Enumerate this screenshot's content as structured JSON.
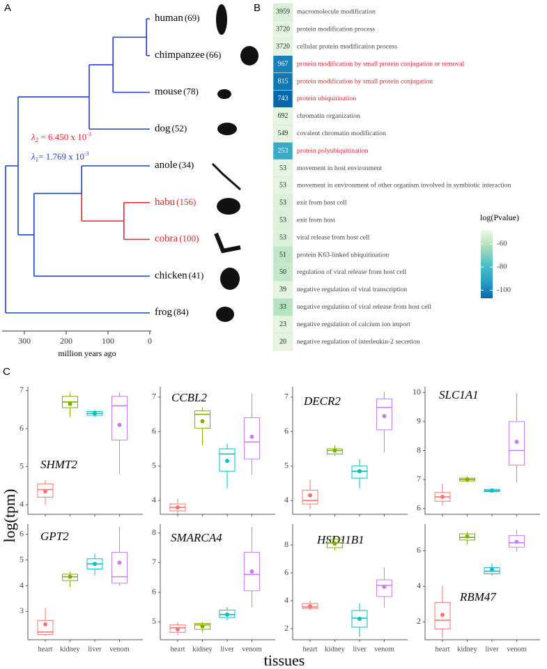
{
  "panel_labels": [
    "A",
    "B",
    "C"
  ],
  "tree": {
    "xlim": [
      345,
      0
    ],
    "xticks": [
      300,
      200,
      100,
      0
    ],
    "xlabel": "million years ago",
    "branch_color": "#1f3fcf",
    "annotations": [
      {
        "symbol": "λ",
        "subscript": "2",
        "text": " = 6.450 x 10",
        "superscript": "-3",
        "color": "#e8212a"
      },
      {
        "symbol": "λ",
        "subscript": "1",
        "text": "= 1.769 x 10",
        "superscript": "-3",
        "color": "#1f3fcf"
      }
    ],
    "root": {
      "age": 345,
      "children": [
        {
          "age": 315,
          "children": [
            {
              "age": 145,
              "children": [
                {
                  "age": 88,
                  "children": [
                    {
                      "age": 8,
                      "children": [
                        {
                          "name": "human",
                          "count": "(69)"
                        },
                        {
                          "name": "chimpanzee",
                          "count": "(66)"
                        }
                      ]
                    },
                    {
                      "name": "mouse",
                      "count": "(78)"
                    }
                  ]
                },
                {
                  "name": "dog",
                  "count": "(52)"
                }
              ]
            },
            {
              "age": 277,
              "children": [
                {
                  "age": 163,
                  "children": [
                    {
                      "name": "anole",
                      "count": "(34)"
                    },
                    {
                      "age": 62,
                      "color": "#e8212a",
                      "children": [
                        {
                          "name": "habu",
                          "count": "(156)",
                          "color": "#e8212a"
                        },
                        {
                          "name": "cobra",
                          "count": "(100)",
                          "color": "#e8212a"
                        }
                      ]
                    }
                  ]
                },
                {
                  "name": "chicken",
                  "count": "(41)"
                }
              ]
            }
          ]
        },
        {
          "name": "frog",
          "count": "(84)"
        }
      ]
    }
  },
  "heatmap": {
    "counts": [
      "3959",
      "3720",
      "3720",
      "967",
      "815",
      "743",
      "692",
      "549",
      "253",
      "53",
      "53",
      "53",
      "53",
      "53",
      "51",
      "50",
      "39",
      "33",
      "23",
      "20"
    ],
    "terms": [
      "macromolecule modification",
      "protein modification process",
      "cellular protein modification process",
      "protein modification by small protein conjugation or removal",
      "protein modification by small protein conjugation",
      "protein ubiquitination",
      "chromatin organization",
      "covalent chromatin modification",
      "protein polyubiquitination",
      "movement in host environment",
      "movement in environment of other organism involved in symbiotic interaction",
      "exit from host cell",
      "exit from host",
      "viral release from host cell",
      "protein K63-linked ubiquitination",
      "regulation of viral release from host cell",
      "negative regulation of viral transcription",
      "negative regulation of viral release from host cell",
      "negative regulation of calcium ion import",
      "negative regulation of interleukin-2 secretion"
    ],
    "log_pvalues": [
      -52,
      -50,
      -50,
      -100,
      -103,
      -107,
      -50,
      -50,
      -87,
      -50,
      -50,
      -52,
      -52,
      -52,
      -58,
      -57,
      -50,
      -60,
      -50,
      -50
    ],
    "highlight": [
      3,
      4,
      5,
      8
    ],
    "highlight_color": "#e8212a",
    "legend_title": "log(Pvalue)",
    "legend_ticks": [
      -60,
      -80,
      -100
    ],
    "color_lim": [
      -107,
      -48
    ],
    "color_scale": [
      "#0868ac",
      "#2c9fc6",
      "#4ec1c9",
      "#a8ddb5",
      "#f0f9e8"
    ]
  },
  "panel_c": {
    "ylabel": "log(tpm)",
    "xlabel": "tissues",
    "categories": [
      "heart",
      "kidney",
      "liver",
      "venom"
    ],
    "colors": [
      "#f8766d",
      "#7cae00",
      "#00bfc4",
      "#c77cff"
    ]
  },
  "chart_data": [
    {
      "type": "box",
      "title": "SHMT2",
      "ylim": [
        3.75,
        7.1
      ],
      "yticks": [
        4,
        5,
        6,
        7
      ],
      "boxes": [
        {
          "whislo": 4.0,
          "q1": 4.2,
          "med": 4.4,
          "q3": 4.55,
          "whishi": 4.65,
          "mean": 4.35
        },
        {
          "whislo": 6.3,
          "q1": 6.55,
          "med": 6.7,
          "q3": 6.85,
          "whishi": 6.95,
          "mean": 6.65
        },
        {
          "whislo": 6.3,
          "q1": 6.35,
          "med": 6.4,
          "q3": 6.45,
          "whishi": 6.5,
          "mean": 6.4
        },
        {
          "whislo": 4.8,
          "q1": 5.7,
          "med": 6.6,
          "q3": 6.85,
          "whishi": 6.95,
          "mean": 6.1
        }
      ]
    },
    {
      "type": "box",
      "title": "CCBL2",
      "ylim": [
        3.6,
        7.3
      ],
      "yticks": [
        4,
        5,
        6,
        7
      ],
      "boxes": [
        {
          "whislo": 3.6,
          "q1": 3.7,
          "med": 3.8,
          "q3": 3.9,
          "whishi": 4.05,
          "mean": 3.8
        },
        {
          "whislo": 5.6,
          "q1": 6.1,
          "med": 6.5,
          "q3": 6.6,
          "whishi": 6.7,
          "mean": 6.3
        },
        {
          "whislo": 4.35,
          "q1": 4.85,
          "med": 5.35,
          "q3": 5.5,
          "whishi": 5.65,
          "mean": 5.15
        },
        {
          "whislo": 4.75,
          "q1": 5.2,
          "med": 5.7,
          "q3": 6.4,
          "whishi": 7.1,
          "mean": 5.85
        }
      ]
    },
    {
      "type": "box",
      "title": "DECR2",
      "ylim": [
        3.6,
        7.3
      ],
      "yticks": [
        4,
        5,
        6,
        7
      ],
      "boxes": [
        {
          "whislo": 3.75,
          "q1": 3.9,
          "med": 4.0,
          "q3": 4.3,
          "whishi": 4.6,
          "mean": 4.15
        },
        {
          "whislo": 5.3,
          "q1": 5.35,
          "med": 5.45,
          "q3": 5.5,
          "whishi": 5.6,
          "mean": 5.45
        },
        {
          "whislo": 4.35,
          "q1": 4.65,
          "med": 4.85,
          "q3": 5.0,
          "whishi": 5.2,
          "mean": 4.85
        },
        {
          "whislo": 5.4,
          "q1": 6.05,
          "med": 6.7,
          "q3": 6.95,
          "whishi": 7.15,
          "mean": 6.45
        }
      ]
    },
    {
      "type": "box",
      "title": "SLC1A1",
      "ylim": [
        5.8,
        10.2
      ],
      "yticks": [
        6,
        7,
        8,
        9,
        10
      ],
      "boxes": [
        {
          "whislo": 6.1,
          "q1": 6.25,
          "med": 6.4,
          "q3": 6.55,
          "whishi": 6.85,
          "mean": 6.4
        },
        {
          "whislo": 6.9,
          "q1": 6.95,
          "med": 7.0,
          "q3": 7.05,
          "whishi": 7.1,
          "mean": 7.0
        },
        {
          "whislo": 6.55,
          "q1": 6.58,
          "med": 6.62,
          "q3": 6.66,
          "whishi": 6.7,
          "mean": 6.62
        },
        {
          "whislo": 6.9,
          "q1": 7.5,
          "med": 8.0,
          "q3": 9.0,
          "whishi": 10.0,
          "mean": 8.3
        }
      ]
    },
    {
      "type": "box",
      "title": "GPT2",
      "ylim": [
        1.9,
        6.4
      ],
      "yticks": [
        3,
        4,
        5,
        6
      ],
      "boxes": [
        {
          "whislo": 2.05,
          "q1": 2.1,
          "med": 2.2,
          "q3": 2.65,
          "whishi": 3.15,
          "mean": 2.5
        },
        {
          "whislo": 3.95,
          "q1": 4.2,
          "med": 4.35,
          "q3": 4.45,
          "whishi": 4.55,
          "mean": 4.35
        },
        {
          "whislo": 4.4,
          "q1": 4.65,
          "med": 4.85,
          "q3": 5.05,
          "whishi": 5.25,
          "mean": 4.85
        },
        {
          "whislo": 4.0,
          "q1": 4.1,
          "med": 4.35,
          "q3": 5.3,
          "whishi": 6.3,
          "mean": 4.9
        }
      ]
    },
    {
      "type": "box",
      "title": "SMARCA4",
      "ylim": [
        4.4,
        8.3
      ],
      "yticks": [
        5,
        6,
        7,
        8
      ],
      "boxes": [
        {
          "whislo": 4.55,
          "q1": 4.65,
          "med": 4.8,
          "q3": 4.9,
          "whishi": 5.0,
          "mean": 4.75
        },
        {
          "whislo": 4.65,
          "q1": 4.75,
          "med": 4.9,
          "q3": 4.95,
          "whishi": 5.0,
          "mean": 4.85
        },
        {
          "whislo": 5.05,
          "q1": 5.15,
          "med": 5.25,
          "q3": 5.4,
          "whishi": 5.5,
          "mean": 5.25
        },
        {
          "whislo": 5.5,
          "q1": 6.05,
          "med": 6.6,
          "q3": 7.35,
          "whishi": 8.2,
          "mean": 6.7
        }
      ]
    },
    {
      "type": "box",
      "title": "HSD11B1",
      "ylim": [
        1.2,
        9.5
      ],
      "yticks": [
        2,
        4,
        6,
        8
      ],
      "boxes": [
        {
          "whislo": 3.3,
          "q1": 3.45,
          "med": 3.55,
          "q3": 3.8,
          "whishi": 4.0,
          "mean": 3.6
        },
        {
          "whislo": 7.6,
          "q1": 7.8,
          "med": 8.15,
          "q3": 8.4,
          "whishi": 8.6,
          "mean": 8.1
        },
        {
          "whislo": 1.4,
          "q1": 2.1,
          "med": 2.75,
          "q3": 3.3,
          "whishi": 3.8,
          "mean": 2.7
        },
        {
          "whislo": 3.5,
          "q1": 4.3,
          "med": 5.1,
          "q3": 5.5,
          "whishi": 6.4,
          "mean": 5.0
        }
      ]
    },
    {
      "type": "box",
      "title": "RBM47",
      "ylim": [
        1.0,
        7.5
      ],
      "yticks": [
        2,
        4,
        6
      ],
      "boxes": [
        {
          "whislo": 1.1,
          "q1": 1.6,
          "med": 2.1,
          "q3": 3.1,
          "whishi": 4.05,
          "mean": 2.4
        },
        {
          "whislo": 6.35,
          "q1": 6.6,
          "med": 6.75,
          "q3": 6.95,
          "whishi": 7.05,
          "mean": 6.8
        },
        {
          "whislo": 4.6,
          "q1": 4.7,
          "med": 4.85,
          "q3": 5.05,
          "whishi": 5.3,
          "mean": 4.95
        },
        {
          "whislo": 5.95,
          "q1": 6.2,
          "med": 6.45,
          "q3": 6.85,
          "whishi": 7.2,
          "mean": 6.5
        }
      ]
    }
  ]
}
